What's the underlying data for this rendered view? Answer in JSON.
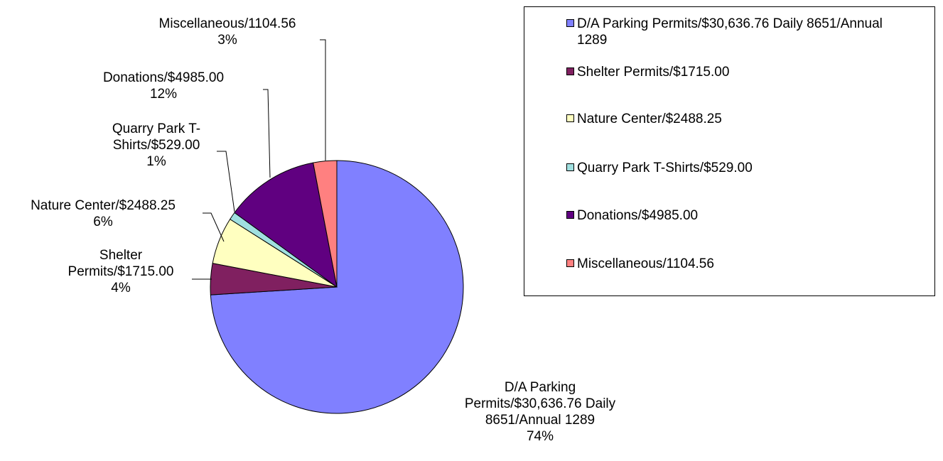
{
  "chart_data": {
    "type": "pie",
    "categories": [
      "D/A Parking Permits/$30,636.76 Daily 8651/Annual 1289",
      "Shelter Permits/$1715.00",
      "Nature Center/$2488.25",
      "Quarry Park T-Shirts/$529.00",
      "Donations/$4985.00",
      "Miscellaneous/1104.56"
    ],
    "values": [
      74,
      4,
      6,
      1,
      12,
      3
    ],
    "value_labels": [
      "74%",
      "4%",
      "6%",
      "1%",
      "12%",
      "3%"
    ],
    "colors": [
      "#8080ff",
      "#802060",
      "#ffffc0",
      "#a0e0e0",
      "#600080",
      "#ff8080"
    ]
  }
}
